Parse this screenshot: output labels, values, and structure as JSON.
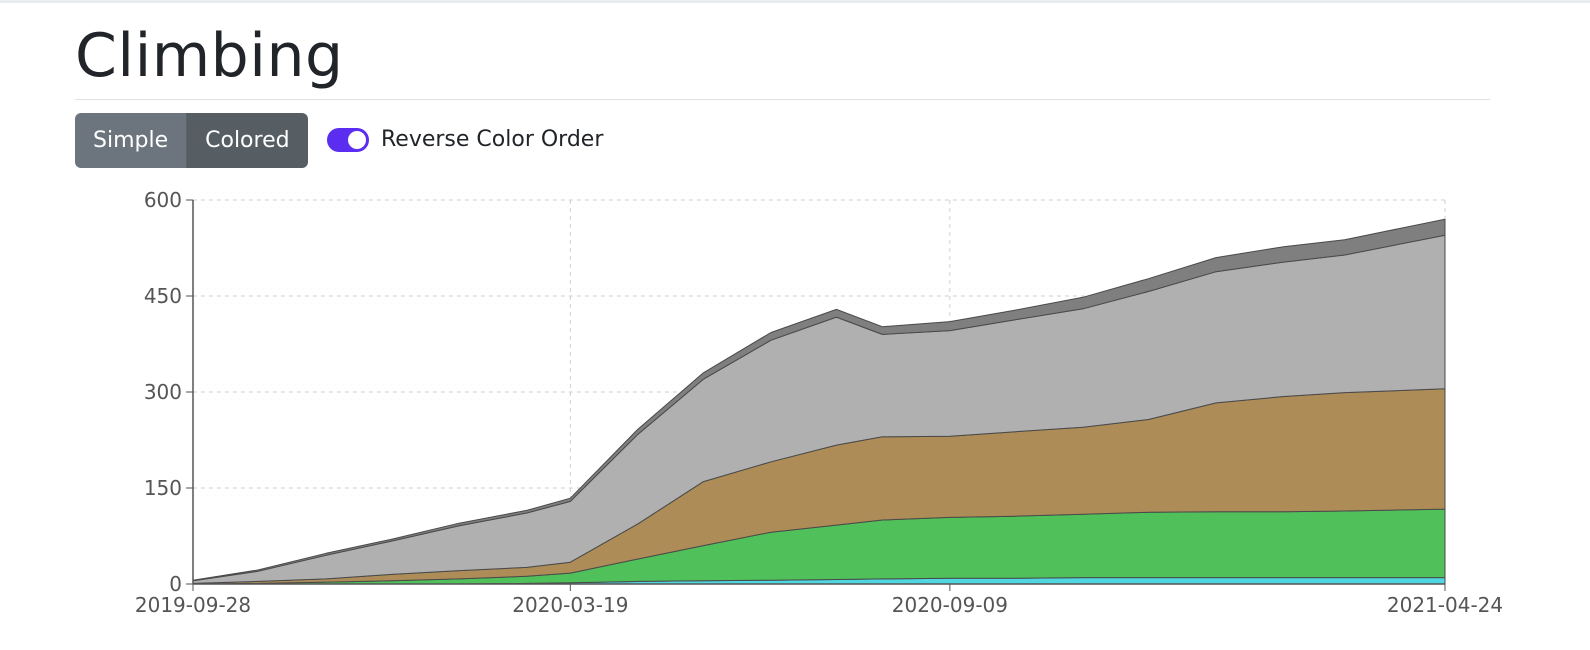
{
  "page": {
    "title": "Climbing"
  },
  "view_toggle": {
    "options": [
      "Simple",
      "Colored"
    ],
    "selected": "Colored"
  },
  "reverse_toggle": {
    "label": "Reverse Color Order",
    "checked": true
  },
  "colors": {
    "accent": "#5a2df0",
    "button": "#6c757d",
    "button_active": "#565e64"
  },
  "chart_data": {
    "type": "area",
    "stacked": true,
    "title": "",
    "xlabel": "",
    "ylabel": "",
    "ylim": [
      0,
      600
    ],
    "y_ticks": [
      0,
      150,
      300,
      450,
      600
    ],
    "x_ticks": [
      "2019-09-28",
      "2020-03-19",
      "2020-09-09",
      "2021-04-24"
    ],
    "grid": true,
    "x": [
      "2019-09-28",
      "2019-10-28",
      "2019-11-28",
      "2019-12-28",
      "2020-01-28",
      "2020-02-28",
      "2020-03-19",
      "2020-04-19",
      "2020-05-19",
      "2020-06-19",
      "2020-07-19",
      "2020-08-09",
      "2020-09-09",
      "2020-10-09",
      "2020-11-09",
      "2020-12-09",
      "2021-01-09",
      "2021-02-09",
      "2021-03-09",
      "2021-04-24"
    ],
    "series": [
      {
        "color": "#6a4fd6",
        "values": [
          0,
          0,
          0,
          0,
          0,
          0,
          0,
          0,
          0,
          0,
          0,
          0,
          0,
          0,
          0,
          0,
          0,
          0,
          0,
          0
        ]
      },
      {
        "color": "#4fd6e0",
        "values": [
          0,
          0,
          0,
          0,
          0,
          1,
          2,
          4,
          5,
          6,
          7,
          8,
          9,
          9,
          10,
          10,
          10,
          10,
          10,
          10
        ]
      },
      {
        "color": "#50c05a",
        "values": [
          0,
          1,
          3,
          5,
          8,
          11,
          15,
          35,
          55,
          75,
          85,
          92,
          95,
          97,
          99,
          102,
          103,
          103,
          104,
          107
        ]
      },
      {
        "color": "#ad8c58",
        "values": [
          1,
          3,
          5,
          10,
          13,
          14,
          17,
          55,
          100,
          110,
          125,
          130,
          127,
          132,
          136,
          145,
          170,
          180,
          185,
          188
        ]
      },
      {
        "color": "#b0b0b0",
        "values": [
          4,
          16,
          37,
          52,
          70,
          85,
          95,
          140,
          160,
          190,
          200,
          160,
          165,
          175,
          185,
          200,
          205,
          210,
          215,
          240
        ]
      },
      {
        "color": "#7f7f7f",
        "values": [
          1,
          2,
          3,
          3,
          4,
          4,
          5,
          8,
          10,
          12,
          12,
          12,
          14,
          15,
          18,
          20,
          22,
          24,
          24,
          25
        ]
      }
    ]
  }
}
